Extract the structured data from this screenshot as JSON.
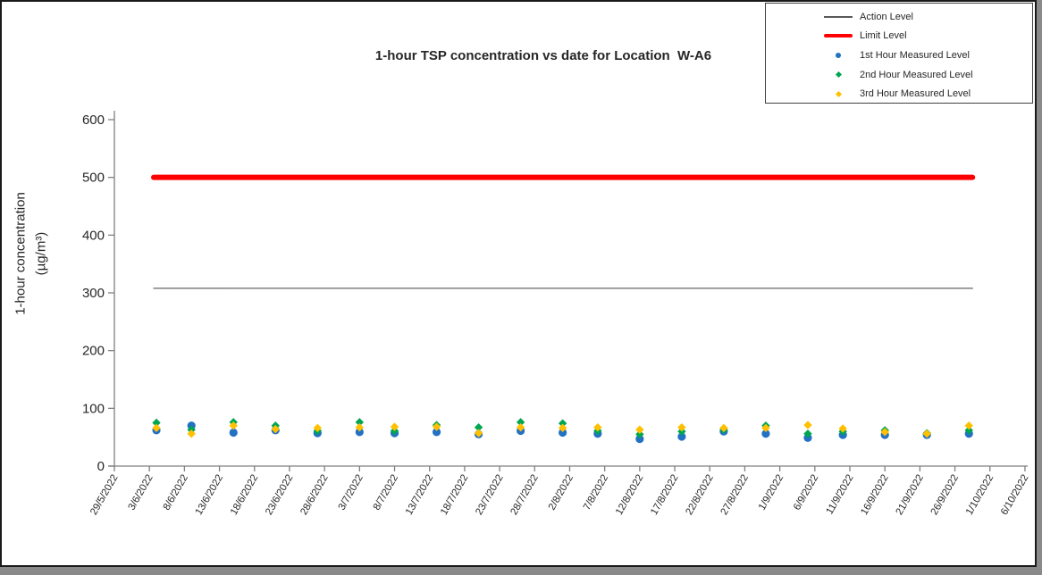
{
  "title": "1-hour TSP concentration vs date for Location  W-A6",
  "y_axis": {
    "label_line1": "1-hour concentration",
    "label_line2": "(µg/m³)"
  },
  "legend": {
    "entries": [
      {
        "label": "Action Level",
        "marker": "line",
        "color": "#595959"
      },
      {
        "label": "Limit Level",
        "marker": "thick-line",
        "color": "#FF0000"
      },
      {
        "label": "1st Hour Measured Level",
        "marker": "circle",
        "color": "#2271C3"
      },
      {
        "label": "2nd Hour Measured Level",
        "marker": "diamond",
        "color": "#00A651"
      },
      {
        "label": "3rd Hour Measured Level",
        "marker": "diamond",
        "color": "#FFC000"
      }
    ]
  },
  "chart_data": {
    "type": "scatter",
    "title": "1-hour TSP concentration vs date for Location  W-A6",
    "xlabel": "",
    "ylabel": "1-hour concentration (µg/m³)",
    "ylim": [
      0,
      600
    ],
    "yticks": [
      0,
      100,
      200,
      300,
      400,
      500,
      600
    ],
    "grid": false,
    "legend_position": "top-right",
    "x_tick_labels": [
      "29/5/2022",
      "3/6/2022",
      "8/6/2022",
      "13/6/2022",
      "18/6/2022",
      "23/6/2022",
      "28/6/2022",
      "3/7/2022",
      "8/7/2022",
      "13/7/2022",
      "18/7/2022",
      "23/7/2022",
      "28/7/2022",
      "2/8/2022",
      "7/8/2022",
      "12/8/2022",
      "17/8/2022",
      "22/8/2022",
      "27/8/2022",
      "1/9/2022",
      "6/9/2022",
      "11/9/2022",
      "16/9/2022",
      "21/9/2022",
      "26/9/2022",
      "1/10/2022",
      "6/10/2022"
    ],
    "reference_lines": [
      {
        "name": "Action Level",
        "value": 308,
        "color": "#7F7F7F",
        "width": 1.5
      },
      {
        "name": "Limit Level",
        "value": 500,
        "color": "#FF0000",
        "width": 6
      }
    ],
    "dates": [
      "4/6/2022",
      "9/6/2022",
      "15/6/2022",
      "21/6/2022",
      "27/6/2022",
      "3/7/2022",
      "8/7/2022",
      "14/7/2022",
      "20/7/2022",
      "26/7/2022",
      "1/8/2022",
      "6/8/2022",
      "12/8/2022",
      "18/8/2022",
      "24/8/2022",
      "30/8/2022",
      "5/9/2022",
      "10/9/2022",
      "16/9/2022",
      "22/9/2022",
      "28/9/2022"
    ],
    "series": [
      {
        "name": "1st Hour Measured Level",
        "marker": "circle",
        "color": "#2271C3",
        "values": [
          62,
          70,
          58,
          62,
          57,
          59,
          57,
          59,
          55,
          61,
          58,
          56,
          47,
          51,
          60,
          56,
          49,
          54,
          54,
          54,
          56
        ]
      },
      {
        "name": "2nd Hour Measured Level",
        "marker": "diamond",
        "color": "#00A651",
        "values": [
          75,
          63,
          76,
          70,
          61,
          76,
          61,
          71,
          67,
          76,
          74,
          61,
          55,
          60,
          63,
          70,
          56,
          60,
          62,
          57,
          62
        ]
      },
      {
        "name": "3rd Hour Measured Level",
        "marker": "diamond",
        "color": "#FFC000",
        "values": [
          66,
          56,
          70,
          64,
          66,
          67,
          68,
          68,
          57,
          67,
          66,
          67,
          63,
          67,
          66,
          66,
          71,
          65,
          59,
          56,
          70
        ]
      }
    ]
  }
}
